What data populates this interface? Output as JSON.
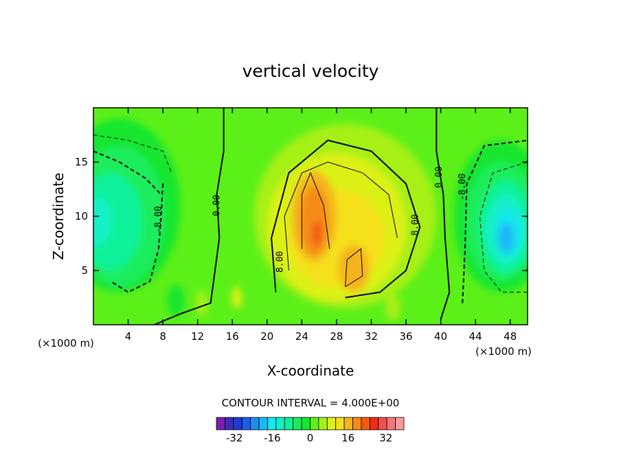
{
  "chart_data": {
    "type": "contour",
    "title": "vertical velocity",
    "xlabel": "X-coordinate",
    "ylabel": "Z-coordinate",
    "x_unit": "(×1000 m)",
    "z_unit": "(×1000 m)",
    "xlim": [
      0,
      50
    ],
    "ylim": [
      0,
      20
    ],
    "x_ticks": [
      4,
      8,
      12,
      16,
      20,
      24,
      28,
      32,
      36,
      40,
      44,
      48
    ],
    "y_ticks": [
      5,
      10,
      15
    ],
    "contour_interval_text": "CONTOUR INTERVAL = 4.000E+00",
    "contour_interval": 4,
    "contour_labels": [
      {
        "text": "-8.00",
        "x": 7.8,
        "z": 9.7,
        "angle": -90
      },
      {
        "text": "0.00",
        "x": 14.5,
        "z": 11.0,
        "angle": -90
      },
      {
        "text": "8.00",
        "x": 21.8,
        "z": 5.8,
        "angle": -90
      },
      {
        "text": "8.00",
        "x": 37.4,
        "z": 9.2,
        "angle": -90
      },
      {
        "text": "0.00",
        "x": 40.1,
        "z": 13.6,
        "angle": -90
      },
      {
        "text": "-8.00",
        "x": 42.8,
        "z": 12.7,
        "angle": -90
      }
    ],
    "colorbar": {
      "levels": [
        -36,
        -32,
        -28,
        -24,
        -20,
        -16,
        -12,
        -8,
        -4,
        0,
        4,
        8,
        12,
        16,
        20,
        24,
        28,
        32,
        36
      ],
      "colors": [
        "#7a1fb0",
        "#3d2bb8",
        "#1f3bd6",
        "#1a5de8",
        "#1f8cf0",
        "#1cb8f5",
        "#19e6f0",
        "#12f0c8",
        "#0ef29a",
        "#1aed5c",
        "#19e62f",
        "#5cf019",
        "#a6f019",
        "#dcf019",
        "#f5e01a",
        "#f5b41a",
        "#f58c14",
        "#f55a14",
        "#f02d14",
        "#f05050",
        "#f57878",
        "#fa9a9a"
      ],
      "tick_labels": [
        "-32",
        "-16",
        "0",
        "16",
        "32"
      ],
      "tick_values": [
        -32,
        -16,
        0,
        16,
        32
      ]
    },
    "field_features": [
      {
        "kind": "downdraft",
        "x": 3.0,
        "z": 9.6,
        "peak": -16
      },
      {
        "kind": "updraft",
        "x": 25.5,
        "z": 8.5,
        "peak": 24
      },
      {
        "kind": "updraft",
        "x": 30.0,
        "z": 5.2,
        "peak": 16
      },
      {
        "kind": "updraft",
        "x": 28.0,
        "z": 10.0,
        "peak": 12
      },
      {
        "kind": "downdraft",
        "x": 47.5,
        "z": 8.0,
        "peak": -24
      }
    ]
  }
}
